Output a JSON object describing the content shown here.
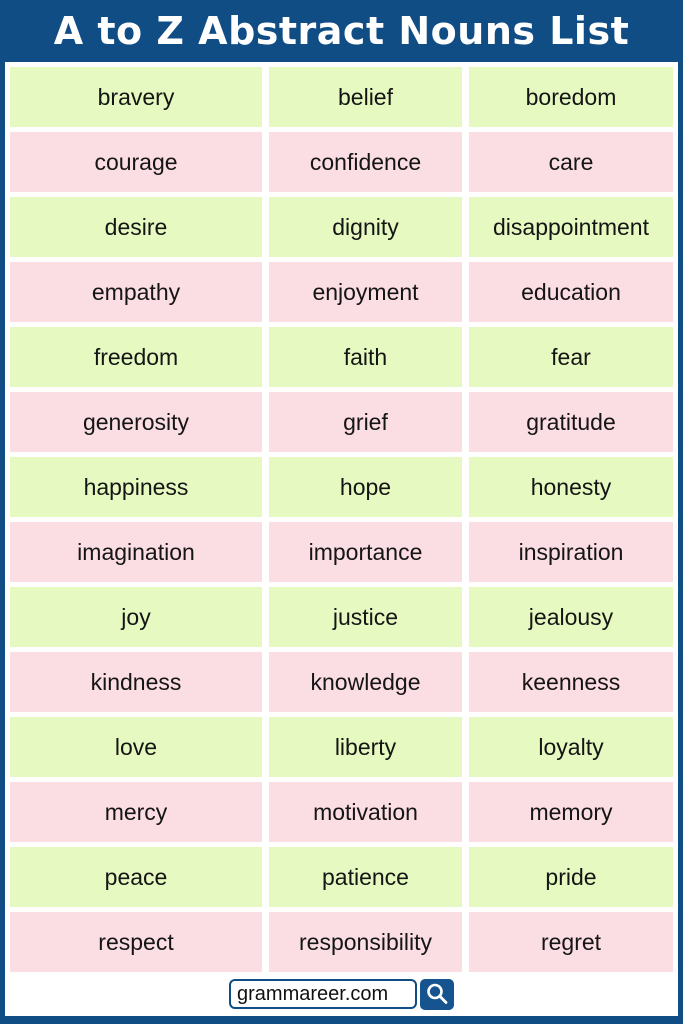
{
  "header": {
    "title": "A to Z Abstract Nouns List"
  },
  "table": {
    "columns": 3,
    "rows": [
      [
        "bravery",
        "belief",
        "boredom"
      ],
      [
        "courage",
        "confidence",
        "care"
      ],
      [
        "desire",
        "dignity",
        "disappointment"
      ],
      [
        "empathy",
        "enjoyment",
        "education"
      ],
      [
        "freedom",
        "faith",
        "fear"
      ],
      [
        "generosity",
        "grief",
        "gratitude"
      ],
      [
        "happiness",
        "hope",
        "honesty"
      ],
      [
        "imagination",
        "importance",
        "inspiration"
      ],
      [
        "joy",
        "justice",
        "jealousy"
      ],
      [
        "kindness",
        "knowledge",
        "keenness"
      ],
      [
        "love",
        "liberty",
        "loyalty"
      ],
      [
        "mercy",
        "motivation",
        "memory"
      ],
      [
        "peace",
        "patience",
        "pride"
      ],
      [
        "respect",
        "responsibility",
        "regret"
      ]
    ]
  },
  "footer": {
    "site": "grammareer.com",
    "search_icon": "magnifier-icon"
  },
  "colors": {
    "frame_blue": "#0f4d84",
    "button_blue": "#15548f",
    "row_green": "#e5f9c0",
    "row_pink": "#fbdde4",
    "title_text": "#ffffff",
    "cell_text": "#151515"
  }
}
